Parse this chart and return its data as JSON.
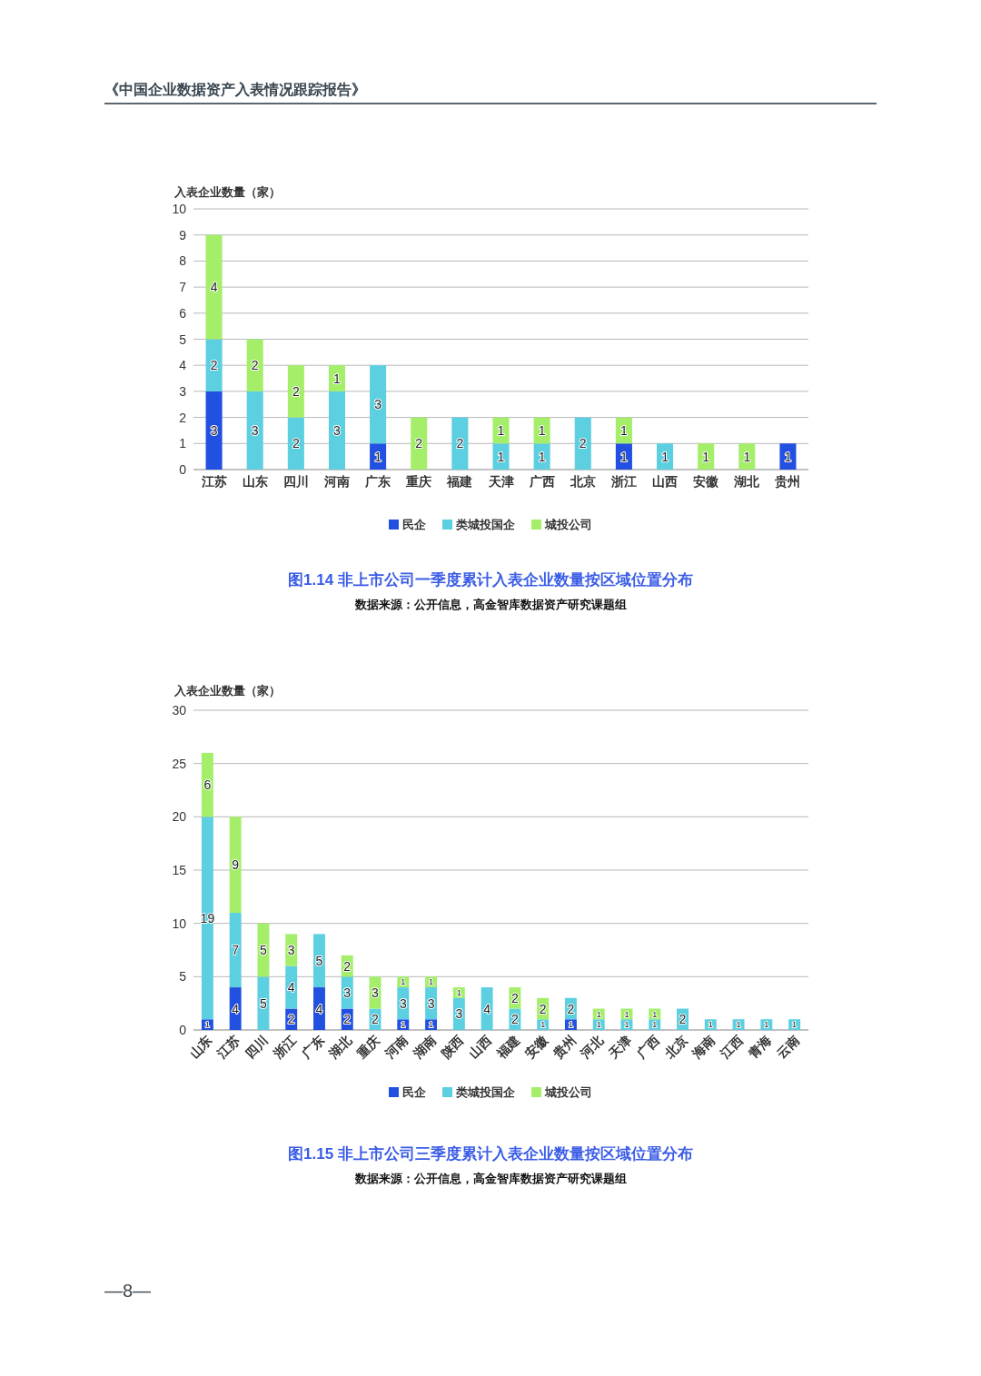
{
  "chart_data": [
    {
      "type": "bar",
      "stacked": true,
      "title": "图1.14 非上市公司一季度累计入表企业数量按区域位置分布",
      "ylabel": "入表企业数量（家）",
      "categories": [
        "江苏",
        "山东",
        "四川",
        "河南",
        "广东",
        "重庆",
        "福建",
        "天津",
        "广西",
        "北京",
        "浙江",
        "山西",
        "安徽",
        "湖北",
        "贵州"
      ],
      "series": [
        {
          "name": "民企",
          "color": "#2250e0",
          "values": [
            3,
            null,
            null,
            null,
            1,
            null,
            null,
            null,
            null,
            null,
            1,
            null,
            null,
            null,
            1
          ]
        },
        {
          "name": "类城投国企",
          "color": "#5ccfe0",
          "values": [
            2,
            3,
            2,
            3,
            3,
            null,
            2,
            1,
            1,
            2,
            null,
            1,
            null,
            null,
            null
          ]
        },
        {
          "name": "城投公司",
          "color": "#a5ee6a",
          "values": [
            4,
            2,
            2,
            1,
            null,
            2,
            null,
            1,
            1,
            null,
            1,
            null,
            1,
            1,
            null
          ]
        }
      ],
      "ylim": [
        0,
        10
      ],
      "yticks": [
        0,
        1,
        2,
        3,
        4,
        5,
        6,
        7,
        8,
        9,
        10
      ],
      "grid": "y",
      "legend": "bottom",
      "data_labels": true,
      "annotations": [
        "数据来源：公开信息，高金智库数据资产研究课题组",
        "《中国企业数据资产入表情况跟踪报告》"
      ]
    },
    {
      "type": "bar",
      "stacked": true,
      "title": "图1.15 非上市公司三季度累计入表企业数量按区域位置分布",
      "ylabel": "入表企业数量（家）",
      "categories": [
        "山东",
        "江苏",
        "四川",
        "浙江",
        "广东",
        "湖北",
        "重庆",
        "河南",
        "湖南",
        "陕西",
        "山西",
        "福建",
        "安徽",
        "贵州",
        "河北",
        "天津",
        "广西",
        "北京",
        "海南",
        "江西",
        "青海",
        "云南"
      ],
      "series": [
        {
          "name": "民企",
          "color": "#2250e0",
          "values": [
            1,
            4,
            null,
            2,
            4,
            2,
            null,
            1,
            1,
            null,
            null,
            null,
            null,
            1,
            null,
            null,
            null,
            null,
            null,
            null,
            null,
            null
          ]
        },
        {
          "name": "类城投国企",
          "color": "#5ccfe0",
          "values": [
            19,
            7,
            5,
            4,
            5,
            3,
            2,
            3,
            3,
            3,
            4,
            2,
            1,
            2,
            1,
            1,
            1,
            2,
            1,
            1,
            1,
            1
          ]
        },
        {
          "name": "城投公司",
          "color": "#a5ee6a",
          "values": [
            6,
            9,
            5,
            3,
            null,
            2,
            3,
            1,
            1,
            1,
            null,
            2,
            2,
            null,
            1,
            1,
            1,
            null,
            null,
            null,
            null,
            null
          ]
        }
      ],
      "ylim": [
        0,
        30
      ],
      "yticks": [
        0,
        5,
        10,
        15,
        20,
        25,
        30
      ],
      "grid": "y",
      "legend": "bottom",
      "data_labels": true,
      "annotations": [
        "数据来源：公开信息，高金智库数据资产研究课题组",
        "—8—"
      ]
    }
  ]
}
